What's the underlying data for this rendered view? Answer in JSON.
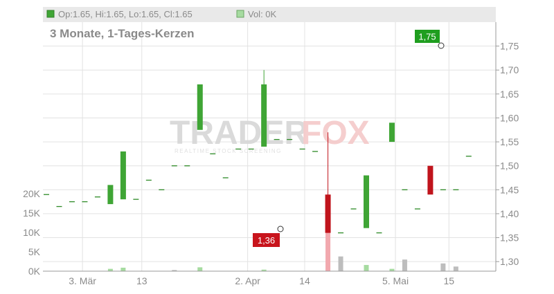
{
  "header": {
    "ohlc_text": "Op:1.65, Hi:1.65, Lo:1.65, Cl:1.65",
    "vol_text": "Vol: 0K",
    "subtitle": "3 Monate, 1-Tages-Kerzen"
  },
  "watermark": {
    "brand_left": "TRADER",
    "brand_right": "FOX",
    "tagline": "REALTIME STOCK SCREENING"
  },
  "colors": {
    "up": "#3fa535",
    "down": "#c0141c",
    "flat": "#2d8a26",
    "vol_up": "#a6dba0",
    "vol_down": "#f2a8ae",
    "vol_flat": "#bdbdbd",
    "grid": "#e2e2e2",
    "header_bg": "#e9e9e9",
    "axis_text": "#8a8a8a"
  },
  "chart_data": {
    "type": "candlestick",
    "title": "3 Monate, 1-Tages-Kerzen",
    "ylim": [
      1.28,
      1.8
    ],
    "y_ticks": [
      1.3,
      1.35,
      1.4,
      1.45,
      1.5,
      1.55,
      1.6,
      1.65,
      1.7,
      1.75
    ],
    "y_tick_labels": [
      "1,30",
      "1,35",
      "1,40",
      "1,45",
      "1,50",
      "1,55",
      "1,60",
      "1,65",
      "1,70",
      "1,75"
    ],
    "vol_ticks": [
      0,
      5000,
      10000,
      15000,
      20000
    ],
    "vol_tick_labels": [
      "0K",
      "5K",
      "10K",
      "15K",
      "20K"
    ],
    "vol_max": 25000,
    "x_labels": [
      {
        "index": 3,
        "label": "3. Mär"
      },
      {
        "index": 8,
        "label": "13"
      },
      {
        "index": 17,
        "label": "2. Apr"
      },
      {
        "index": 22,
        "label": "14"
      },
      {
        "index": 30,
        "label": "5. Mai"
      },
      {
        "index": 36,
        "label": "15"
      }
    ],
    "candles": [
      {
        "o": 1.44,
        "h": 1.44,
        "l": 1.44,
        "c": 1.44,
        "v": 0
      },
      {
        "o": 1.415,
        "h": 1.415,
        "l": 1.415,
        "c": 1.415,
        "v": 0
      },
      {
        "o": 1.425,
        "h": 1.425,
        "l": 1.425,
        "c": 1.425,
        "v": 0
      },
      {
        "o": 1.425,
        "h": 1.425,
        "l": 1.425,
        "c": 1.425,
        "v": 0
      },
      {
        "o": 1.435,
        "h": 1.435,
        "l": 1.435,
        "c": 1.435,
        "v": 0
      },
      {
        "o": 1.42,
        "h": 1.46,
        "l": 1.42,
        "c": 1.46,
        "v": 600
      },
      {
        "o": 1.43,
        "h": 1.53,
        "l": 1.43,
        "c": 1.53,
        "v": 900
      },
      {
        "o": 1.43,
        "h": 1.43,
        "l": 1.43,
        "c": 1.43,
        "v": 0
      },
      {
        "o": 1.47,
        "h": 1.47,
        "l": 1.47,
        "c": 1.47,
        "v": 0
      },
      {
        "o": 1.45,
        "h": 1.45,
        "l": 1.45,
        "c": 1.45,
        "v": 0
      },
      {
        "o": 1.5,
        "h": 1.5,
        "l": 1.5,
        "c": 1.5,
        "v": 300
      },
      {
        "o": 1.5,
        "h": 1.5,
        "l": 1.5,
        "c": 1.5,
        "v": 0
      },
      {
        "o": 1.575,
        "h": 1.67,
        "l": 1.575,
        "c": 1.67,
        "v": 1000
      },
      {
        "o": 1.525,
        "h": 1.525,
        "l": 1.525,
        "c": 1.525,
        "v": 0
      },
      {
        "o": 1.475,
        "h": 1.475,
        "l": 1.475,
        "c": 1.475,
        "v": 0
      },
      {
        "o": 1.535,
        "h": 1.535,
        "l": 1.535,
        "c": 1.535,
        "v": 0
      },
      {
        "o": 1.535,
        "h": 1.535,
        "l": 1.535,
        "c": 1.535,
        "v": 0
      },
      {
        "o": 1.54,
        "h": 1.7,
        "l": 1.54,
        "c": 1.67,
        "v": 400
      },
      {
        "o": 1.555,
        "h": 1.555,
        "l": 1.555,
        "c": 1.555,
        "v": 0
      },
      {
        "o": 1.555,
        "h": 1.555,
        "l": 1.555,
        "c": 1.555,
        "v": 0
      },
      {
        "o": 1.535,
        "h": 1.535,
        "l": 1.535,
        "c": 1.535,
        "v": 0
      },
      {
        "o": 1.53,
        "h": 1.53,
        "l": 1.53,
        "c": 1.53,
        "v": 0
      },
      {
        "o": 1.44,
        "h": 1.57,
        "l": 1.36,
        "c": 1.36,
        "v": 12000
      },
      {
        "o": 1.36,
        "h": 1.36,
        "l": 1.36,
        "c": 1.36,
        "v": 3800
      },
      {
        "o": 1.41,
        "h": 1.41,
        "l": 1.41,
        "c": 1.41,
        "v": 0
      },
      {
        "o": 1.37,
        "h": 1.48,
        "l": 1.37,
        "c": 1.48,
        "v": 1600
      },
      {
        "o": 1.36,
        "h": 1.36,
        "l": 1.36,
        "c": 1.36,
        "v": 0
      },
      {
        "o": 1.55,
        "h": 1.59,
        "l": 1.55,
        "c": 1.59,
        "v": 600
      },
      {
        "o": 1.45,
        "h": 1.45,
        "l": 1.45,
        "c": 1.45,
        "v": 3000
      },
      {
        "o": 1.41,
        "h": 1.41,
        "l": 1.41,
        "c": 1.41,
        "v": 0
      },
      {
        "o": 1.5,
        "h": 1.5,
        "l": 1.44,
        "c": 1.44,
        "v": 0
      },
      {
        "o": 1.45,
        "h": 1.45,
        "l": 1.45,
        "c": 1.45,
        "v": 2000
      },
      {
        "o": 1.45,
        "h": 1.45,
        "l": 1.45,
        "c": 1.45,
        "v": 1200
      },
      {
        "o": 1.52,
        "h": 1.52,
        "l": 1.52,
        "c": 1.52,
        "v": 0
      }
    ]
  }
}
